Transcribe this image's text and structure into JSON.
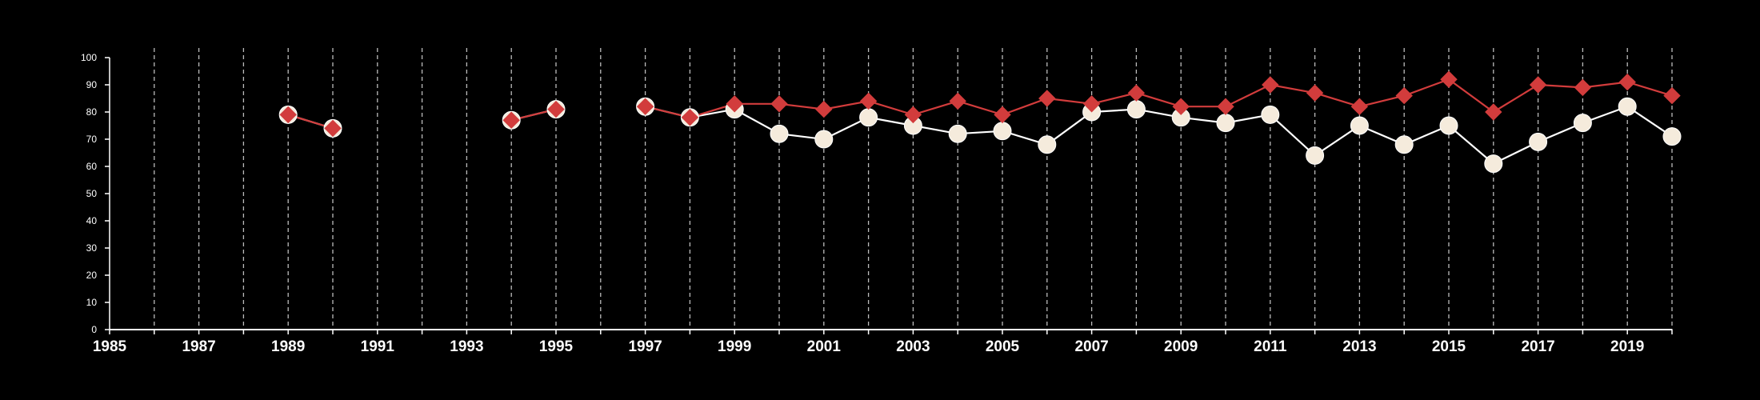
{
  "chart_data": {
    "type": "line",
    "title": "",
    "xlabel": "",
    "ylabel": "",
    "xlim": [
      1985,
      2020
    ],
    "ylim": [
      0,
      100
    ],
    "x_ticks": [
      1985,
      1987,
      1989,
      1991,
      1993,
      1995,
      1997,
      1999,
      2001,
      2003,
      2005,
      2007,
      2009,
      2011,
      2013,
      2015,
      2017,
      2019
    ],
    "x_tick_labels": [
      "1985",
      "1987",
      "1989",
      "1991",
      "1993",
      "1995",
      "1997",
      "1999",
      "2001",
      "2003",
      "2005",
      "2007",
      "2009",
      "2011",
      "2013",
      "2015",
      "2017",
      "2019"
    ],
    "y_ticks": [
      0,
      10,
      20,
      30,
      40,
      50,
      60,
      70,
      80,
      90,
      100
    ],
    "y_tick_labels": [
      "0",
      "10",
      "20",
      "30",
      "40",
      "50",
      "60",
      "70",
      "80",
      "90",
      "100"
    ],
    "vertical_gridlines": "dashed, every year",
    "background_color": "#000000",
    "axis_color": "#ffffff",
    "gridline_color": "#bbbbbb",
    "series": [
      {
        "marker": "circle",
        "color": "#f5ebdc",
        "line_color": "#ffffff",
        "points": [
          [
            1989,
            79
          ],
          [
            1990,
            74
          ],
          [
            1994,
            77
          ],
          [
            1995,
            81
          ],
          [
            1997,
            82
          ],
          [
            1998,
            78
          ],
          [
            1999,
            81
          ],
          [
            2000,
            72
          ],
          [
            2001,
            70
          ],
          [
            2002,
            78
          ],
          [
            2003,
            75
          ],
          [
            2004,
            72
          ],
          [
            2005,
            73
          ],
          [
            2006,
            68
          ],
          [
            2007,
            80
          ],
          [
            2008,
            81
          ],
          [
            2009,
            78
          ],
          [
            2010,
            76
          ],
          [
            2011,
            79
          ],
          [
            2012,
            64
          ],
          [
            2013,
            75
          ],
          [
            2014,
            68
          ],
          [
            2015,
            75
          ],
          [
            2016,
            61
          ],
          [
            2017,
            69
          ],
          [
            2018,
            76
          ],
          [
            2019,
            82
          ],
          [
            2020,
            71
          ]
        ]
      },
      {
        "marker": "diamond",
        "color": "#d23c3c",
        "line_color": "#d23c3c",
        "points": [
          [
            1989,
            79
          ],
          [
            1990,
            74
          ],
          [
            1994,
            77
          ],
          [
            1995,
            81
          ],
          [
            1997,
            82
          ],
          [
            1998,
            78
          ],
          [
            1999,
            83
          ],
          [
            2000,
            83
          ],
          [
            2001,
            81
          ],
          [
            2002,
            84
          ],
          [
            2003,
            79
          ],
          [
            2004,
            84
          ],
          [
            2005,
            79
          ],
          [
            2006,
            85
          ],
          [
            2007,
            83
          ],
          [
            2008,
            87
          ],
          [
            2009,
            82
          ],
          [
            2010,
            82
          ],
          [
            2011,
            90
          ],
          [
            2012,
            87
          ],
          [
            2013,
            82
          ],
          [
            2014,
            86
          ],
          [
            2015,
            92
          ],
          [
            2016,
            80
          ],
          [
            2017,
            90
          ],
          [
            2018,
            89
          ],
          [
            2019,
            91
          ],
          [
            2020,
            86
          ]
        ]
      }
    ]
  }
}
